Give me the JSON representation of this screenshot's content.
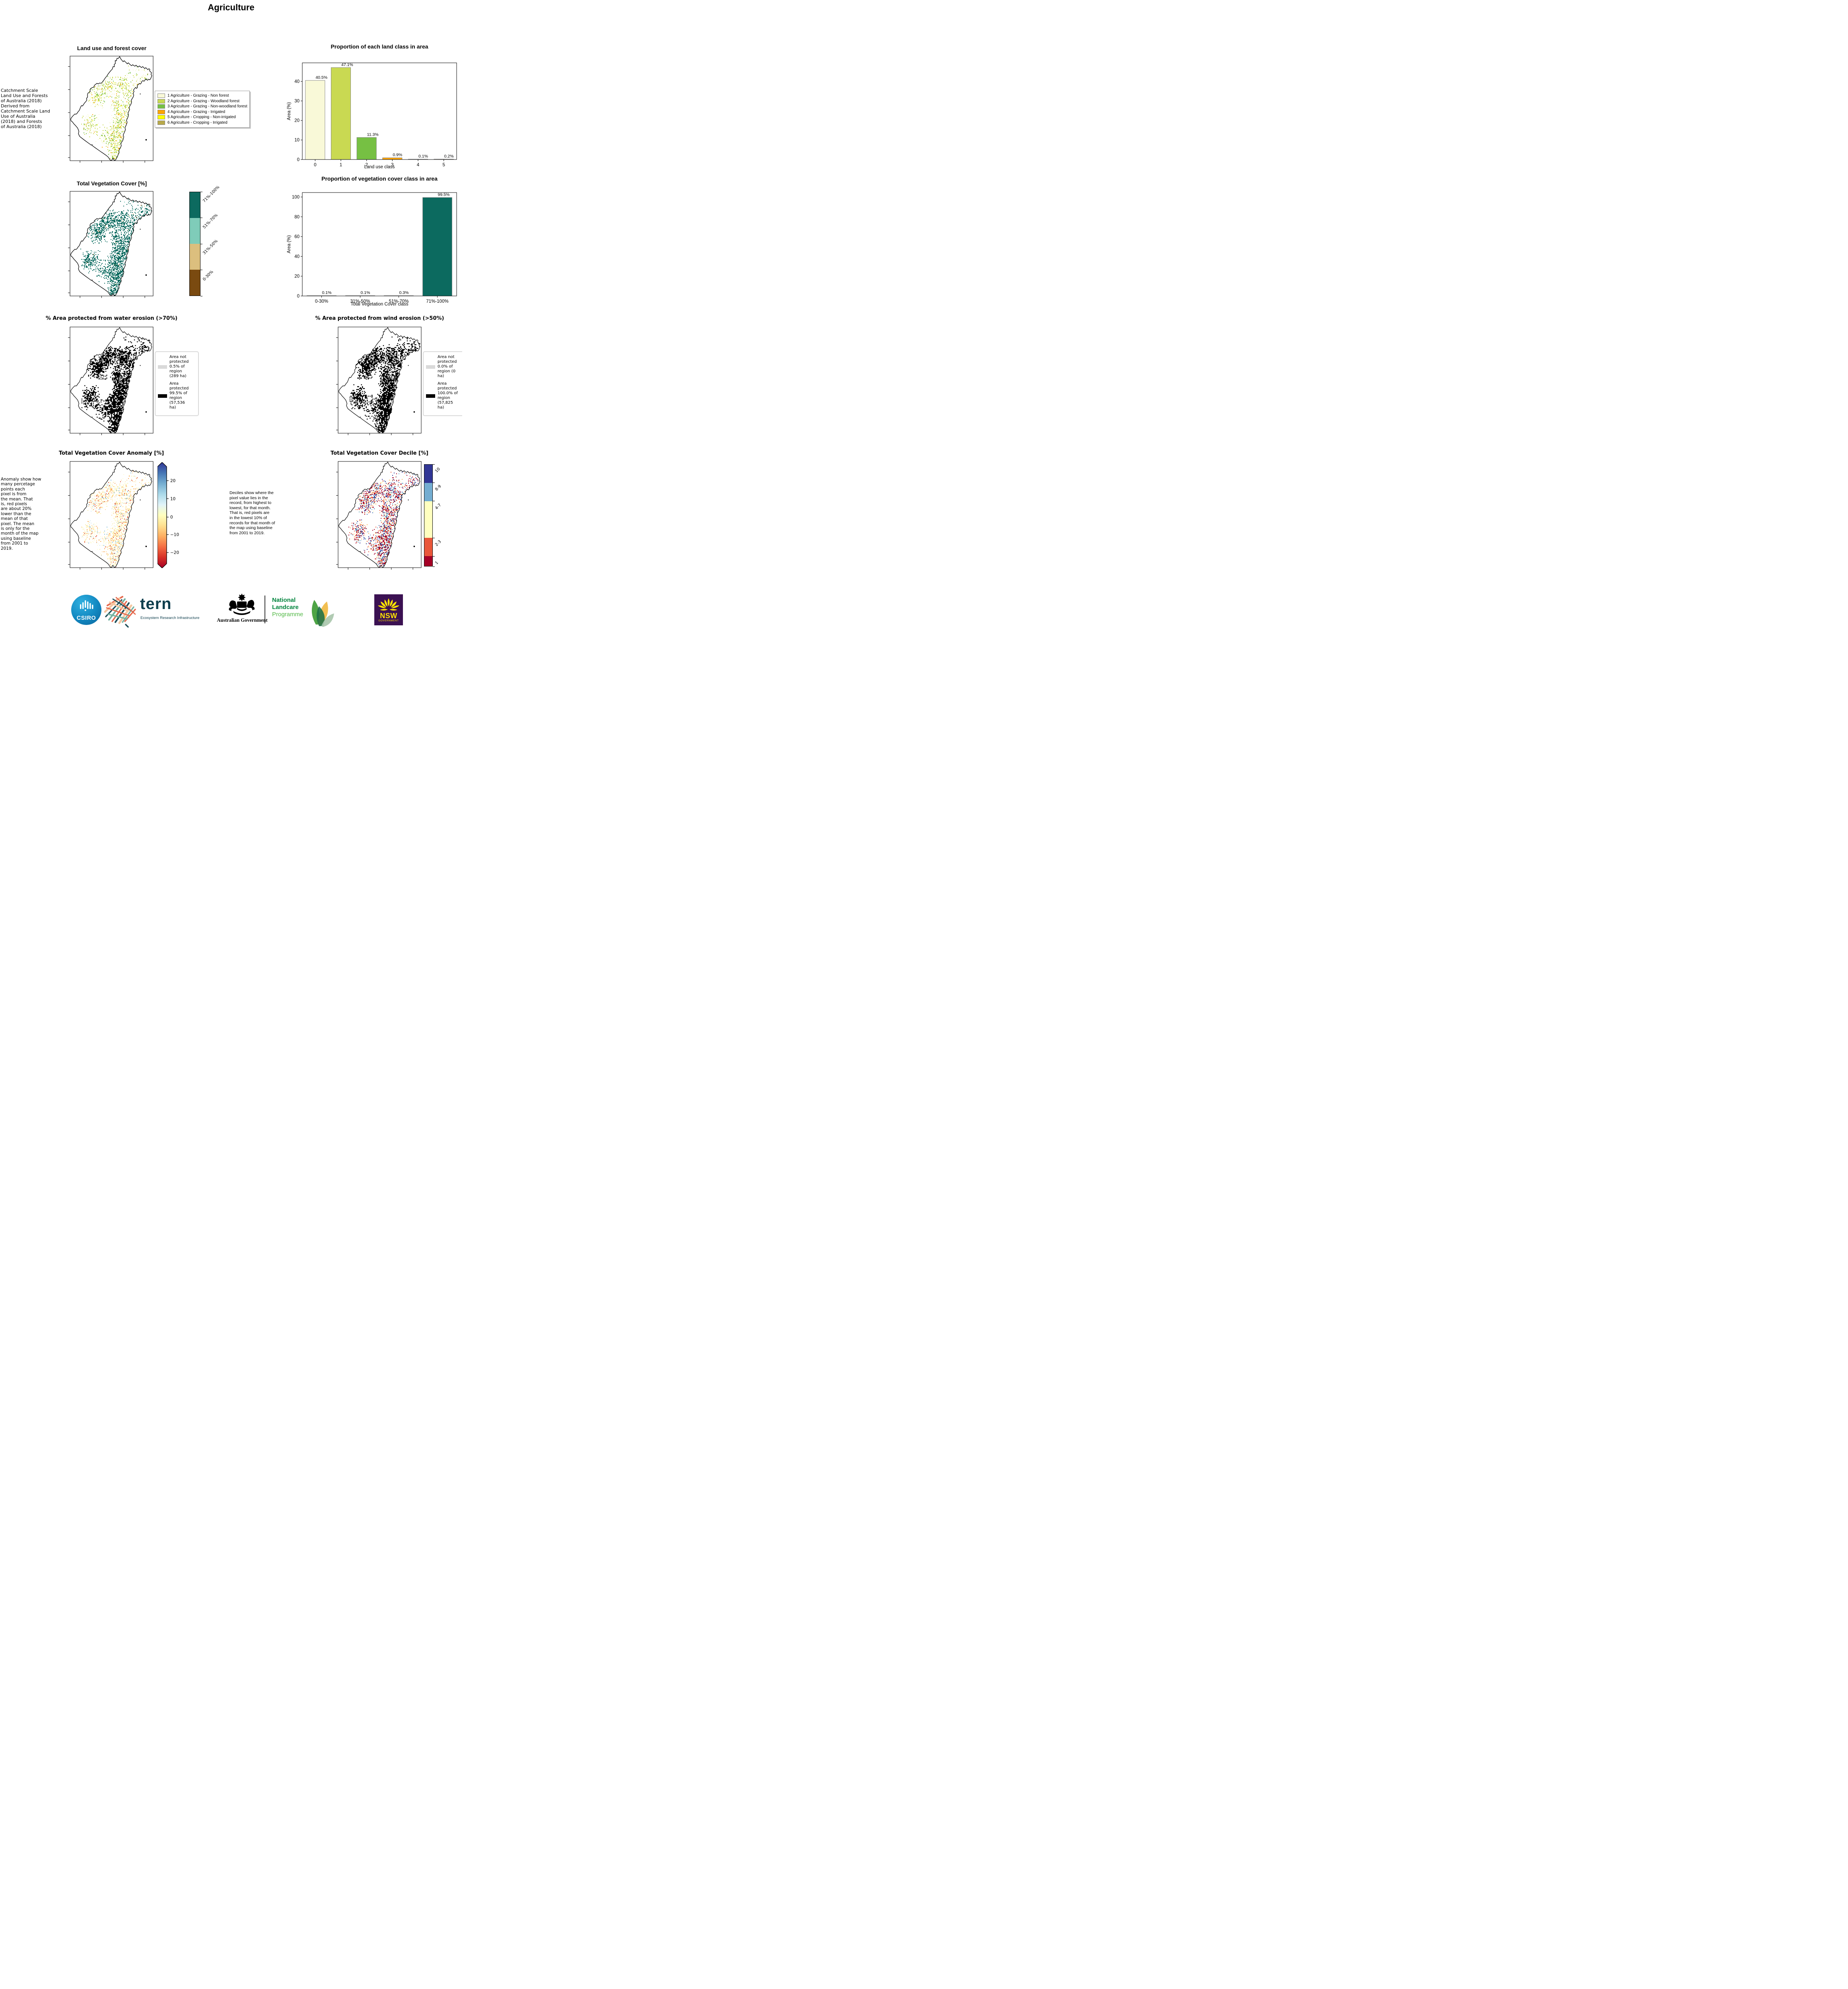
{
  "page": {
    "title": "Agriculture"
  },
  "row1": {
    "map_title": "Land use and forest cover",
    "source_note_lines": [
      " Catchment Scale",
      "Land Use and Forests",
      "of Australia (2018)",
      "Derived from",
      "Catchment Scale Land",
      "Use of Australia",
      "(2018) and Forests",
      "of Australia (2018)"
    ],
    "legend_items": [
      {
        "label": "1 Agriculture - Grazing - Non forest",
        "color": "#F9F9D8"
      },
      {
        "label": "2 Agriculture - Grazing - Woodland forest",
        "color": "#C9D952"
      },
      {
        "label": "3 Agriculture - Grazing - Non-woodland forest",
        "color": "#76C043"
      },
      {
        "label": "4 Agriculture - Grazing - Irrigated",
        "color": "#FFA500"
      },
      {
        "label": "5 Agriculture - Cropping - Non-irrigated",
        "color": "#FFFF00"
      },
      {
        "label": "6 Agriculture - Cropping - Irrigated",
        "color": "#B8A94A"
      }
    ]
  },
  "row2": {
    "map_title": "Total Vegetation Cover [%]",
    "colorbar": {
      "labels": [
        "71%-100%",
        "51%-70%",
        "31%-50%",
        "0-30%"
      ],
      "colors": [
        "#0C6A5F",
        "#7FCCB9",
        "#DCBF7E",
        "#7A4A10"
      ]
    }
  },
  "row3": {
    "left": {
      "title": "% Area protected from water erosion (>70%)",
      "legend": [
        {
          "label": "Area not protected 0.5% of region (289 ha)",
          "color": "#D9D9D9"
        },
        {
          "label": "Area protected 99.5% of region (57,536 ha)",
          "color": "#000000"
        }
      ]
    },
    "right": {
      "title": "% Area protected from wind erosion (>50%)",
      "legend": [
        {
          "label": "Area not protected 0.0% of region (0 ha)",
          "color": "#D9D9D9"
        },
        {
          "label": "Area protected 100.0% of region (57,825 ha)",
          "color": "#000000"
        }
      ]
    }
  },
  "row4": {
    "left": {
      "title": "Total Vegetation Cover Anomaly [%]",
      "note_lines": [
        "Anomaly show how",
        "many percetage",
        "points each",
        "pixel is from",
        "the mean. That",
        "is, red pixels",
        "are about 20%",
        "lower than the",
        "mean of that",
        "pixel. The mean",
        "is only for the",
        "month of the map",
        "using baseline",
        "from 2001 to",
        "2019."
      ],
      "colorbar_ticks": [
        "20",
        "10",
        "0",
        "−10",
        "−20"
      ],
      "colorbar_gradient_top_to_bottom": [
        "#313695",
        "#4575B4",
        "#74ADD1",
        "#ABD9E9",
        "#E0F3F8",
        "#FFFFBF",
        "#FEE090",
        "#FDAE61",
        "#F46D43",
        "#D73027",
        "#A50026"
      ]
    },
    "middle_note_lines": [
      "Deciles show where the",
      "pixel value lies in the",
      "record, from highest to",
      "lowest, for that month.",
      "That is, red pixels are",
      "in the lowest 10% of",
      "records for that month of",
      "the map using baseline",
      "from 2001 to 2019."
    ],
    "right": {
      "title": "Total Vegetation Cover Decile [%]",
      "colorbar_labels": [
        "10",
        "8-9",
        "4-7",
        "2-3",
        "1"
      ],
      "colorbar_colors": [
        "#313695",
        "#74ADD1",
        "#FFFFBF",
        "#E9573A",
        "#A50026"
      ],
      "colorbar_fractions": [
        0.18,
        0.18,
        0.36,
        0.18,
        0.1
      ]
    }
  },
  "chart_data": [
    {
      "type": "bar",
      "title": "Proportion of each land class in area",
      "xlabel": "Land use class",
      "ylabel": "Area (%)",
      "categories": [
        "0",
        "1",
        "2",
        "3",
        "4",
        "5"
      ],
      "values": [
        40.5,
        47.1,
        11.3,
        0.9,
        0.1,
        0.2
      ],
      "labels": [
        "40.5%",
        "47.1%",
        "11.3%",
        "0.9%",
        "0.1%",
        "0.2%"
      ],
      "bar_colors": [
        "#F9F9D8",
        "#C9D952",
        "#76C043",
        "#FFA500",
        "#FFFF00",
        "#B8A94A"
      ],
      "yticks": [
        0,
        10,
        20,
        30,
        40
      ],
      "ylim": [
        0,
        49.5
      ],
      "grid": false,
      "legend": "none"
    },
    {
      "type": "bar",
      "title": "Proportion of vegetation cover class in area",
      "xlabel": "Total Vegetation Cover class",
      "ylabel": "Area (%)",
      "categories": [
        "0-30%",
        "31%-50%",
        "51%-70%",
        "71%-100%"
      ],
      "values": [
        0.1,
        0.1,
        0.3,
        99.5
      ],
      "labels": [
        "0.1%",
        "0.1%",
        "0.3%",
        "99.5%"
      ],
      "bar_colors": [
        "#7A4A10",
        "#DCBF7E",
        "#7FCCB9",
        "#0C6A5F"
      ],
      "yticks": [
        0,
        20,
        40,
        60,
        80,
        100
      ],
      "ylim": [
        0,
        104.5
      ],
      "grid": false,
      "legend": "none"
    }
  ],
  "footer": {
    "csiro": {
      "label": "CSIRO"
    },
    "tern": {
      "word": "tern",
      "subtitle": "Ecosystem Research Infrastructure"
    },
    "aus_gov": {
      "label": "Australian Government"
    },
    "landcare": {
      "line1": "National",
      "line2": "Landcare",
      "line3": "Programme",
      "color_bold": "#00843D",
      "color_light": "#54B948"
    },
    "nsw": {
      "word": "NSW",
      "sub": "GOVERNMENT",
      "bg": "#3B1152",
      "fg": "#FFE600"
    }
  }
}
